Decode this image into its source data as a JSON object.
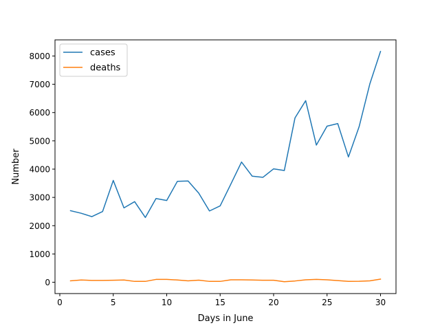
{
  "chart_data": {
    "type": "line",
    "title": "",
    "xlabel": "Days in June",
    "ylabel": "Number",
    "xlim": [
      -0.45,
      31.45
    ],
    "ylim": [
      -400,
      8570
    ],
    "xticks": [
      0,
      5,
      10,
      15,
      20,
      25,
      30
    ],
    "yticks": [
      0,
      1000,
      2000,
      3000,
      4000,
      5000,
      6000,
      7000,
      8000
    ],
    "grid": false,
    "legend_position": "top-left",
    "x": [
      1,
      2,
      3,
      4,
      5,
      6,
      7,
      8,
      9,
      10,
      11,
      12,
      13,
      14,
      15,
      16,
      17,
      18,
      19,
      20,
      21,
      22,
      23,
      24,
      25,
      26,
      27,
      28,
      29,
      30
    ],
    "series": [
      {
        "name": "cases",
        "color": "#1f77b4",
        "values": [
          2530,
          2440,
          2320,
          2500,
          3600,
          2630,
          2850,
          2290,
          2960,
          2890,
          3570,
          3580,
          3150,
          2520,
          2700,
          3470,
          4250,
          3750,
          3710,
          4010,
          3950,
          5810,
          6420,
          4850,
          5520,
          5610,
          4430,
          5500,
          7010,
          8160
        ]
      },
      {
        "name": "deaths",
        "color": "#ff7f0e",
        "values": [
          50,
          80,
          65,
          65,
          70,
          80,
          30,
          30,
          100,
          100,
          80,
          50,
          75,
          30,
          30,
          85,
          85,
          80,
          70,
          70,
          20,
          45,
          85,
          100,
          85,
          60,
          30,
          35,
          50,
          110
        ]
      }
    ]
  }
}
